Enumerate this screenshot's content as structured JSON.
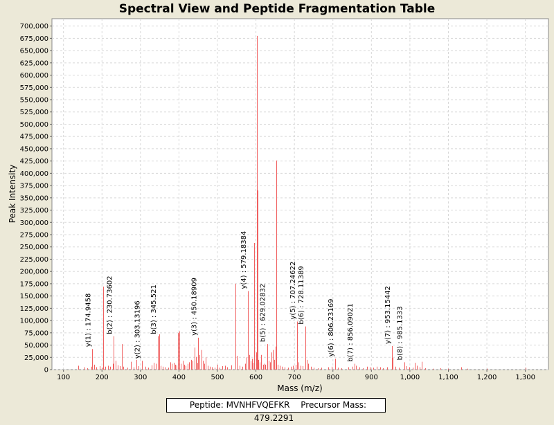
{
  "chart_data": {
    "type": "bar",
    "title": "Spectral View and Peptide Fragmentation Table",
    "xlabel": "Mass (m/z)",
    "ylabel": "Peak Intensity",
    "xlim": [
      70,
      1360
    ],
    "ylim": [
      0,
      715000
    ],
    "x_ticks": [
      100,
      200,
      300,
      400,
      500,
      600,
      700,
      800,
      900,
      1000,
      1100,
      1200,
      1300
    ],
    "x_tick_labels": [
      "100",
      "200",
      "300",
      "400",
      "500",
      "600",
      "700",
      "800",
      "900",
      "1,000",
      "1,100",
      "1,200",
      "1,300"
    ],
    "y_ticks": [
      0,
      25000,
      50000,
      75000,
      100000,
      125000,
      150000,
      175000,
      200000,
      225000,
      250000,
      275000,
      300000,
      325000,
      350000,
      375000,
      400000,
      425000,
      450000,
      475000,
      500000,
      525000,
      550000,
      575000,
      600000,
      625000,
      650000,
      675000,
      700000
    ],
    "y_tick_labels": [
      "0",
      "25,000",
      "50,000",
      "75,000",
      "100,000",
      "125,000",
      "150,000",
      "175,000",
      "200,000",
      "225,000",
      "250,000",
      "275,000",
      "300,000",
      "325,000",
      "350,000",
      "375,000",
      "400,000",
      "425,000",
      "450,000",
      "475,000",
      "500,000",
      "525,000",
      "550,000",
      "575,000",
      "600,000",
      "625,000",
      "650,000",
      "675,000",
      "700,000"
    ],
    "grid": true,
    "series_color": "#F06060",
    "peaks": [
      [
        138,
        8000
      ],
      [
        155,
        5000
      ],
      [
        161,
        3000
      ],
      [
        172,
        6000
      ],
      [
        175,
        42000
      ],
      [
        180,
        10000
      ],
      [
        186,
        5000
      ],
      [
        195,
        7000
      ],
      [
        201,
        4000
      ],
      [
        203,
        169000
      ],
      [
        208,
        6000
      ],
      [
        215,
        8000
      ],
      [
        222,
        6000
      ],
      [
        228,
        12000
      ],
      [
        231,
        68000
      ],
      [
        235,
        18000
      ],
      [
        241,
        9000
      ],
      [
        246,
        7000
      ],
      [
        252,
        52000
      ],
      [
        256,
        6000
      ],
      [
        266,
        4000
      ],
      [
        276,
        16000
      ],
      [
        283,
        5000
      ],
      [
        289,
        20000
      ],
      [
        295,
        7000
      ],
      [
        303,
        18000
      ],
      [
        312,
        6000
      ],
      [
        320,
        4000
      ],
      [
        329,
        9000
      ],
      [
        335,
        14000
      ],
      [
        340,
        12000
      ],
      [
        346,
        68000
      ],
      [
        348,
        72000
      ],
      [
        352,
        8000
      ],
      [
        358,
        6000
      ],
      [
        364,
        5000
      ],
      [
        372,
        4000
      ],
      [
        378,
        15000
      ],
      [
        382,
        12000
      ],
      [
        386,
        14000
      ],
      [
        390,
        10000
      ],
      [
        394,
        9000
      ],
      [
        397,
        75000
      ],
      [
        401,
        78000
      ],
      [
        405,
        12000
      ],
      [
        410,
        18000
      ],
      [
        414,
        10000
      ],
      [
        418,
        8000
      ],
      [
        422,
        12000
      ],
      [
        426,
        15000
      ],
      [
        431,
        20000
      ],
      [
        436,
        18000
      ],
      [
        440,
        45000
      ],
      [
        444,
        26000
      ],
      [
        448,
        14000
      ],
      [
        450,
        65000
      ],
      [
        454,
        30000
      ],
      [
        458,
        40000
      ],
      [
        462,
        18000
      ],
      [
        466,
        12000
      ],
      [
        470,
        25000
      ],
      [
        474,
        8000
      ],
      [
        480,
        6000
      ],
      [
        486,
        5000
      ],
      [
        492,
        4000
      ],
      [
        500,
        10000
      ],
      [
        506,
        4000
      ],
      [
        512,
        7000
      ],
      [
        520,
        8000
      ],
      [
        526,
        5000
      ],
      [
        536,
        9000
      ],
      [
        546,
        175000
      ],
      [
        551,
        28000
      ],
      [
        558,
        8000
      ],
      [
        565,
        6000
      ],
      [
        572,
        12000
      ],
      [
        576,
        25000
      ],
      [
        579,
        160000
      ],
      [
        583,
        30000
      ],
      [
        587,
        18000
      ],
      [
        590,
        22000
      ],
      [
        592,
        14000
      ],
      [
        596,
        258000
      ],
      [
        600,
        35000
      ],
      [
        603,
        680000
      ],
      [
        604,
        365000
      ],
      [
        606,
        20000
      ],
      [
        610,
        15000
      ],
      [
        614,
        30000
      ],
      [
        618,
        10000
      ],
      [
        622,
        12000
      ],
      [
        625,
        10000
      ],
      [
        629,
        52000
      ],
      [
        633,
        18000
      ],
      [
        636,
        15000
      ],
      [
        640,
        35000
      ],
      [
        644,
        40000
      ],
      [
        647,
        20000
      ],
      [
        651,
        47000
      ],
      [
        653,
        426000
      ],
      [
        657,
        10000
      ],
      [
        662,
        8000
      ],
      [
        668,
        6000
      ],
      [
        675,
        5000
      ],
      [
        683,
        4000
      ],
      [
        690,
        6000
      ],
      [
        697,
        8000
      ],
      [
        703,
        10000
      ],
      [
        707,
        98000
      ],
      [
        710,
        15000
      ],
      [
        716,
        8000
      ],
      [
        722,
        7000
      ],
      [
        728,
        88000
      ],
      [
        732,
        20000
      ],
      [
        736,
        12000
      ],
      [
        742,
        6000
      ],
      [
        750,
        4000
      ],
      [
        760,
        3000
      ],
      [
        770,
        4000
      ],
      [
        788,
        5000
      ],
      [
        797,
        6000
      ],
      [
        806,
        22000
      ],
      [
        813,
        4000
      ],
      [
        822,
        3000
      ],
      [
        840,
        5000
      ],
      [
        851,
        6000
      ],
      [
        856,
        12000
      ],
      [
        860,
        8000
      ],
      [
        868,
        5000
      ],
      [
        878,
        3000
      ],
      [
        888,
        6000
      ],
      [
        896,
        5000
      ],
      [
        904,
        4000
      ],
      [
        914,
        6000
      ],
      [
        922,
        5000
      ],
      [
        930,
        3000
      ],
      [
        940,
        5000
      ],
      [
        953,
        48000
      ],
      [
        956,
        24000
      ],
      [
        962,
        6000
      ],
      [
        972,
        4000
      ],
      [
        985,
        15000
      ],
      [
        990,
        7000
      ],
      [
        998,
        5000
      ],
      [
        1008,
        4000
      ],
      [
        1012,
        14000
      ],
      [
        1018,
        8000
      ],
      [
        1026,
        5000
      ],
      [
        1030,
        16000
      ],
      [
        1040,
        3000
      ],
      [
        1060,
        2000
      ],
      [
        1080,
        3000
      ],
      [
        1100,
        2000
      ],
      [
        1133,
        5000
      ],
      [
        1150,
        2000
      ],
      [
        1200,
        2000
      ],
      [
        1300,
        4000
      ]
    ],
    "annotations": [
      {
        "mz": 174.9458,
        "label": "y(1) : 174.9458"
      },
      {
        "mz": 230.73602,
        "label": "b(2) : 230.73602"
      },
      {
        "mz": 303.13196,
        "label": "y(2) : 303.13196"
      },
      {
        "mz": 345.521,
        "label": "b(3) : 345.521"
      },
      {
        "mz": 450.18909,
        "label": "y(3) : 450.18909"
      },
      {
        "mz": 579.18384,
        "label": "y(4) : 579.18384"
      },
      {
        "mz": 629.02832,
        "label": "b(5) : 629.02832"
      },
      {
        "mz": 707.24622,
        "label": "y(5) : 707.24622"
      },
      {
        "mz": 728.11389,
        "label": "b(6) : 728.11389"
      },
      {
        "mz": 806.23169,
        "label": "y(6) : 806.23169"
      },
      {
        "mz": 856.09021,
        "label": "b(7) : 856.09021"
      },
      {
        "mz": 953.15442,
        "label": "y(7) : 953.15442"
      },
      {
        "mz": 985.1333,
        "label": "b(8) : 985.1333"
      }
    ]
  },
  "footer": {
    "peptide": "Peptide: MVNHFVQEFKR",
    "precursor": "Precursor Mass: 479.2291"
  }
}
